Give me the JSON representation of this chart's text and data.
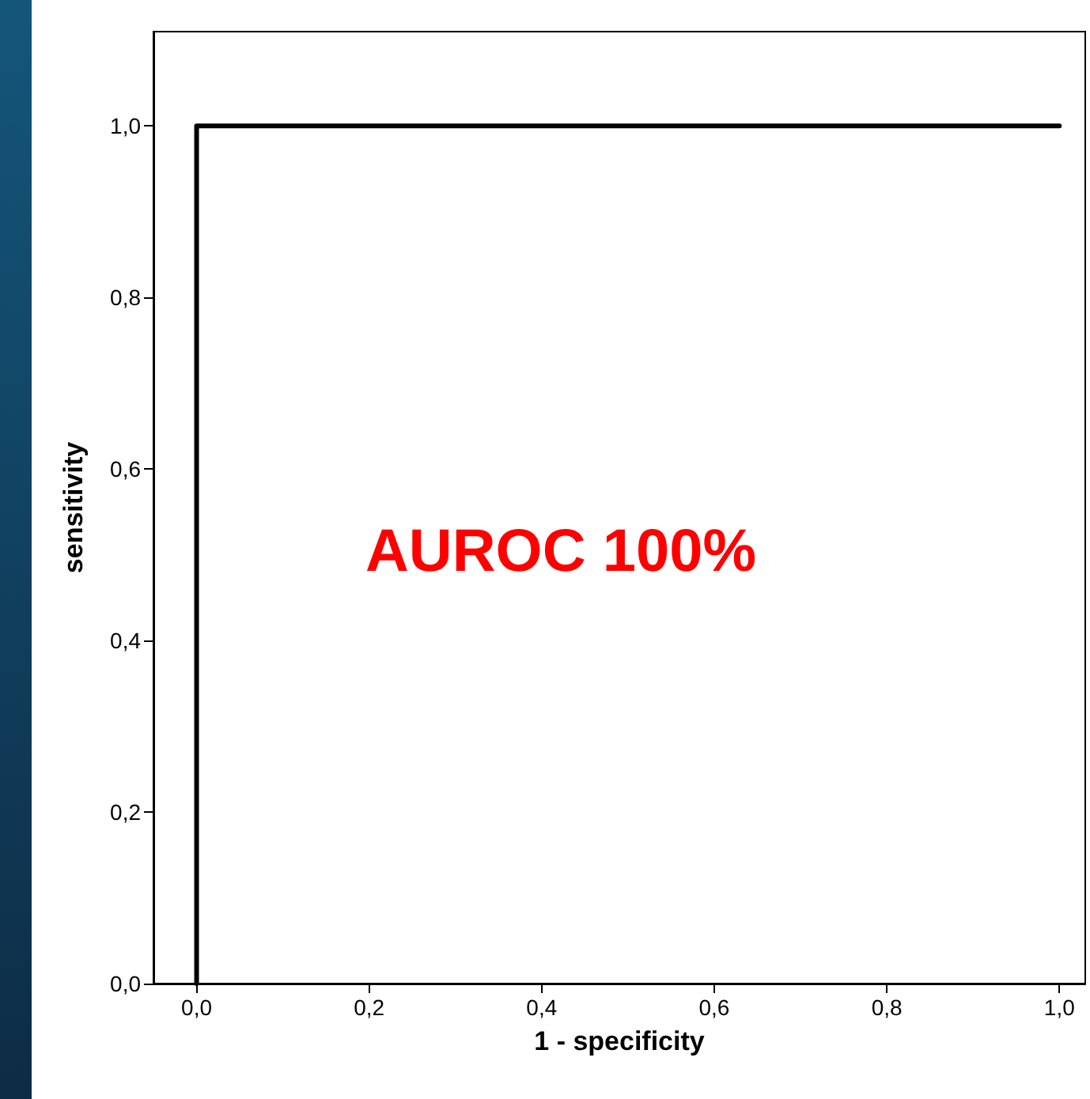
{
  "chart_data": {
    "type": "step",
    "xlabel": "1 - specificity",
    "ylabel": "sensitivity",
    "annotations": [
      "AUROC 100%"
    ],
    "x": [
      0,
      1
    ],
    "series": [
      {
        "color": "#000000",
        "values": [
          0,
          1
        ]
      }
    ],
    "xlim": [
      -0.05,
      1.03
    ],
    "ylim": [
      0,
      1.11
    ],
    "xticks": [
      {
        "value": 0,
        "label": "0,0"
      },
      {
        "value": 0.2,
        "label": "0,2"
      },
      {
        "value": 0.4,
        "label": "0,4"
      },
      {
        "value": 0.6,
        "label": "0,6"
      },
      {
        "value": 0.8,
        "label": "0,8"
      },
      {
        "value": 1,
        "label": "1,0"
      }
    ],
    "yticks": [
      {
        "value": 0,
        "label": "0,0"
      },
      {
        "value": 0.2,
        "label": "0,2"
      },
      {
        "value": 0.4,
        "label": "0,4"
      },
      {
        "value": 0.6,
        "label": "0,6"
      },
      {
        "value": 0.8,
        "label": "0,8"
      },
      {
        "value": 1,
        "label": "1,0"
      }
    ],
    "grid": false,
    "marker": "none",
    "line_style": "solid"
  }
}
